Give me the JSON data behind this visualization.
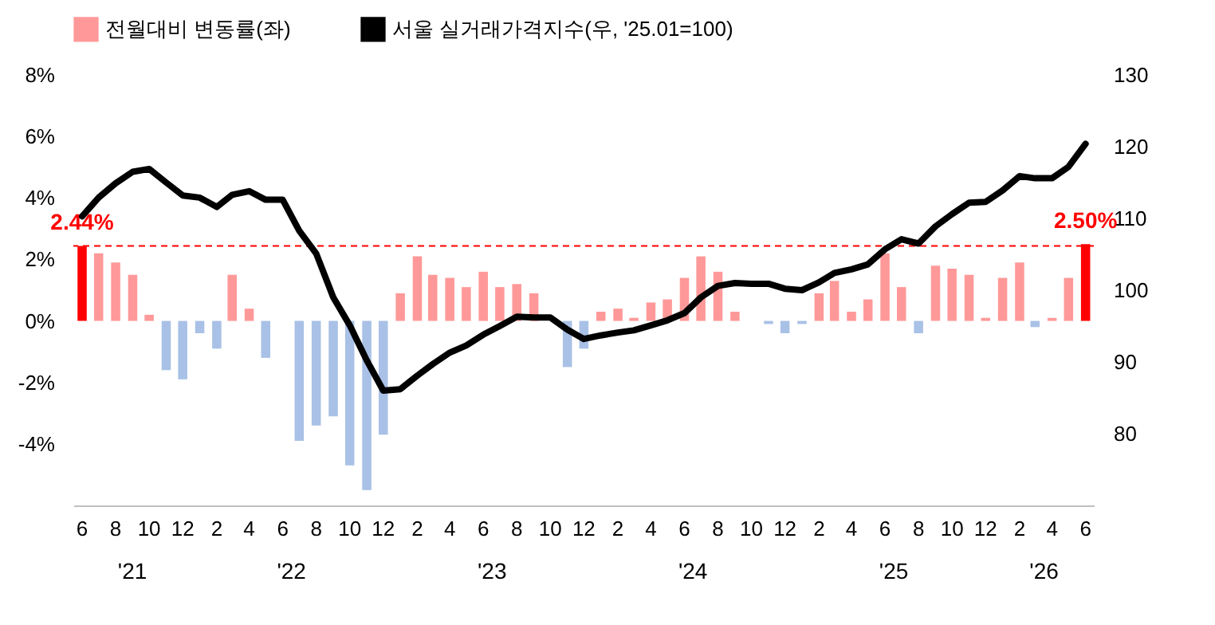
{
  "chart_data": {
    "type": "bar",
    "x": [
      "2021-06",
      "2021-07",
      "2021-08",
      "2021-09",
      "2021-10",
      "2021-11",
      "2021-12",
      "2022-01",
      "2022-02",
      "2022-03",
      "2022-04",
      "2022-05",
      "2022-06",
      "2022-07",
      "2022-08",
      "2022-09",
      "2022-10",
      "2022-11",
      "2022-12",
      "2023-01",
      "2023-02",
      "2023-03",
      "2023-04",
      "2023-05",
      "2023-06",
      "2023-07",
      "2023-08",
      "2023-09",
      "2023-10",
      "2023-11",
      "2023-12",
      "2024-01",
      "2024-02",
      "2024-03",
      "2024-04",
      "2024-05",
      "2024-06",
      "2024-07",
      "2024-08",
      "2024-09",
      "2024-10",
      "2024-11",
      "2024-12",
      "2025-01",
      "2025-02",
      "2025-03",
      "2025-04",
      "2025-05",
      "2025-06",
      "2025-07",
      "2025-08",
      "2025-09",
      "2025-10",
      "2025-11",
      "2025-12",
      "2026-01",
      "2026-02",
      "2026-03",
      "2026-04",
      "2026-05",
      "2026-06"
    ],
    "xticks": [
      {
        "value": "2021-06",
        "label": "6"
      },
      {
        "value": "2021-08",
        "label": "8"
      },
      {
        "value": "2021-10",
        "label": "10"
      },
      {
        "value": "2021-12",
        "label": "12"
      },
      {
        "value": "2022-02",
        "label": "2"
      },
      {
        "value": "2022-04",
        "label": "4"
      },
      {
        "value": "2022-06",
        "label": "6"
      },
      {
        "value": "2022-08",
        "label": "8"
      },
      {
        "value": "2022-10",
        "label": "10"
      },
      {
        "value": "2022-12",
        "label": "12"
      },
      {
        "value": "2023-02",
        "label": "2"
      },
      {
        "value": "2023-04",
        "label": "4"
      },
      {
        "value": "2023-06",
        "label": "6"
      },
      {
        "value": "2023-08",
        "label": "8"
      },
      {
        "value": "2023-10",
        "label": "10"
      },
      {
        "value": "2023-12",
        "label": "12"
      },
      {
        "value": "2024-02",
        "label": "2"
      },
      {
        "value": "2024-04",
        "label": "4"
      },
      {
        "value": "2024-06",
        "label": "6"
      },
      {
        "value": "2024-08",
        "label": "8"
      },
      {
        "value": "2024-10",
        "label": "10"
      },
      {
        "value": "2024-12",
        "label": "12"
      },
      {
        "value": "2025-02",
        "label": "2"
      },
      {
        "value": "2025-04",
        "label": "4"
      },
      {
        "value": "2025-06",
        "label": "6"
      },
      {
        "value": "2025-08",
        "label": "8"
      },
      {
        "value": "2025-10",
        "label": "10"
      },
      {
        "value": "2025-12",
        "label": "12"
      },
      {
        "value": "2026-02",
        "label": "2"
      },
      {
        "value": "2026-04",
        "label": "4"
      },
      {
        "value": "2026-06",
        "label": "6"
      }
    ],
    "annotations": [
      "'21",
      "'22",
      "'23",
      "'24",
      "'25",
      "'26"
    ],
    "series": [
      {
        "type": "bar",
        "name": "전월대비 변동률(좌)",
        "color": "#ff9999",
        "values": [
          2.44,
          2.2,
          1.9,
          1.5,
          0.2,
          -1.6,
          -1.9,
          -0.4,
          -0.9,
          1.5,
          0.4,
          -1.2,
          0,
          -3.9,
          -3.4,
          -3.1,
          -4.7,
          -5.5,
          -3.7,
          0.9,
          2.1,
          1.5,
          1.4,
          1.1,
          1.6,
          1.1,
          1.2,
          0.9,
          0,
          -1.5,
          -0.9,
          0.3,
          0.4,
          0.1,
          0.6,
          0.7,
          1.4,
          2.1,
          1.6,
          0.3,
          0,
          -0.1,
          -0.4,
          -0.1,
          0.9,
          1.3,
          0.3,
          0.7,
          2.2,
          1.1,
          -0.4,
          1.8,
          1.7,
          1.5,
          0.1,
          1.4,
          1.9,
          -0.2,
          0.1,
          1.4,
          2.5
        ],
        "colors": [
          "#ff0000",
          "#ff9999",
          "#ff9999",
          "#ff9999",
          "#ff9999",
          "#a9c1e6",
          "#a9c1e6",
          "#a9c1e6",
          "#a9c1e6",
          "#ff9999",
          "#ff9999",
          "#a9c1e6",
          "#ff9999",
          "#a9c1e6",
          "#a9c1e6",
          "#a9c1e6",
          "#a9c1e6",
          "#a9c1e6",
          "#a9c1e6",
          "#ff9999",
          "#ff9999",
          "#ff9999",
          "#ff9999",
          "#ff9999",
          "#ff9999",
          "#ff9999",
          "#ff9999",
          "#ff9999",
          "#ff9999",
          "#a9c1e6",
          "#a9c1e6",
          "#ff9999",
          "#ff9999",
          "#ff9999",
          "#ff9999",
          "#ff9999",
          "#ff9999",
          "#ff9999",
          "#ff9999",
          "#ff9999",
          "#ff9999",
          "#a9c1e6",
          "#a9c1e6",
          "#a9c1e6",
          "#ff9999",
          "#ff9999",
          "#ff9999",
          "#ff9999",
          "#ff9999",
          "#ff9999",
          "#a9c1e6",
          "#ff9999",
          "#ff9999",
          "#ff9999",
          "#ff9999",
          "#ff9999",
          "#ff9999",
          "#a9c1e6",
          "#ff9999",
          "#ff9999",
          "#ff0000"
        ],
        "value_labels": [
          "2.44%",
          null,
          null,
          null,
          null,
          null,
          null,
          null,
          null,
          null,
          null,
          null,
          null,
          null,
          null,
          null,
          null,
          null,
          null,
          null,
          null,
          null,
          null,
          null,
          null,
          null,
          null,
          null,
          null,
          null,
          null,
          null,
          null,
          null,
          null,
          null,
          null,
          null,
          null,
          null,
          null,
          null,
          null,
          null,
          null,
          null,
          null,
          null,
          null,
          null,
          null,
          null,
          null,
          null,
          null,
          null,
          null,
          null,
          null,
          null,
          "2.50%"
        ]
      },
      {
        "type": "line",
        "axis": "y2",
        "name": "서울 실거래가격지수(우, '25.01=100)",
        "color": "#000000",
        "values": [
          110.3,
          112.9,
          114.9,
          116.5,
          116.9,
          115.0,
          113.2,
          112.9,
          111.6,
          113.3,
          113.8,
          112.6,
          112.6,
          108.3,
          105.1,
          99.0,
          95.1,
          90.2,
          86.0,
          86.2,
          88.1,
          89.7,
          91.3,
          92.3,
          93.8,
          95.0,
          96.3,
          96.2,
          96.2,
          94.5,
          93.2,
          93.7,
          94.1,
          94.4,
          95.1,
          95.8,
          96.8,
          99.0,
          100.6,
          101.0,
          100.9,
          100.9,
          100.2,
          100.0,
          101.1,
          102.4,
          102.9,
          103.6,
          105.7,
          107.1,
          106.5,
          108.9,
          110.6,
          112.2,
          112.3,
          113.9,
          115.9,
          115.6,
          115.6,
          117.2,
          120.4
        ]
      }
    ],
    "xlim": [
      "2021-05-16",
      "2026-06-16"
    ],
    "ylim": [
      -6,
      8
    ],
    "yticks": [
      {
        "value": -4,
        "label": "-4%"
      },
      {
        "value": -2,
        "label": "-2%"
      },
      {
        "value": 0,
        "label": "0%"
      },
      {
        "value": 2,
        "label": "2%"
      },
      {
        "value": 4,
        "label": "4%"
      },
      {
        "value": 6,
        "label": "6%"
      },
      {
        "value": 8,
        "label": "8%"
      }
    ],
    "y2lim": [
      70,
      130
    ],
    "y2ticks": [
      80,
      90,
      100,
      110,
      120,
      130
    ],
    "ref_lines": [
      {
        "axis": "y",
        "value": 2.44,
        "color": "#ff0000",
        "line_style": "dashed"
      }
    ],
    "legend": "top",
    "grid": false,
    "line_style": "solid",
    "marker": "none"
  }
}
